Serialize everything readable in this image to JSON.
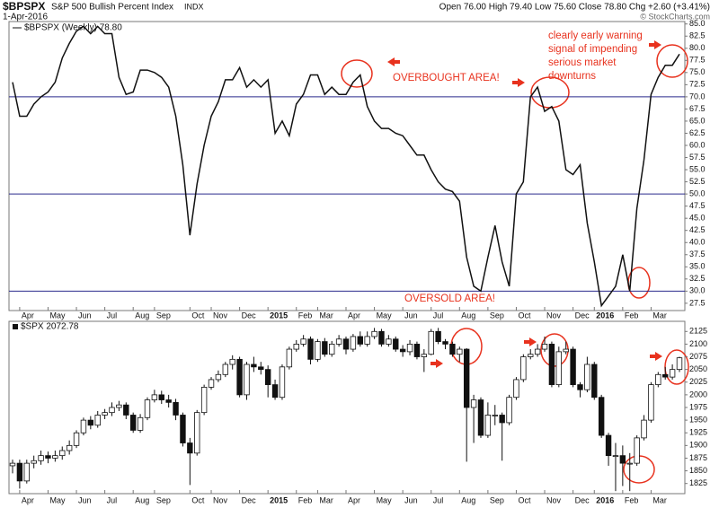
{
  "chart_data": [
    {
      "type": "line",
      "symbol": "$BPSPX",
      "title": "S&P 500 Bullish Percent Index",
      "exchange": "INDX",
      "date": "1-Apr-2016",
      "quote": "Open 76.00 High 79.40 Low 75.60 Close 78.80 Chg +2.60 (+3.41%)",
      "credit": "© StockCharts.com",
      "annotations": [
        "OVERBOUGHT AREA!",
        "OVERSOLD AREA!"
      ],
      "warning_lines": [
        "clearly early warning",
        "signal of impending",
        "serious market",
        "downturns"
      ],
      "categories": [
        null,
        "Apr",
        null,
        null,
        null,
        "May",
        null,
        null,
        null,
        "Jun",
        null,
        null,
        null,
        "Jul",
        null,
        null,
        null,
        "Aug",
        null,
        null,
        "Sep",
        null,
        null,
        null,
        null,
        "Oct",
        null,
        null,
        "Nov",
        null,
        null,
        null,
        "Dec",
        null,
        null,
        null,
        "2015",
        null,
        null,
        null,
        "Feb",
        null,
        null,
        "Mar",
        null,
        null,
        null,
        "Apr",
        null,
        null,
        null,
        "May",
        null,
        null,
        null,
        "Jun",
        null,
        null,
        null,
        "Jul",
        null,
        null,
        null,
        "Aug",
        null,
        null,
        null,
        "Sep",
        null,
        null,
        null,
        "Oct",
        null,
        null,
        null,
        "Nov",
        null,
        null,
        null,
        "Dec",
        null,
        null,
        "2016",
        null,
        null,
        null,
        "Feb",
        null,
        null,
        null,
        "Mar",
        null,
        null,
        null,
        null
      ],
      "series": [
        {
          "name": "$BPSPX (Weekly) 78.80",
          "color": "#111111",
          "values": [
            73,
            66,
            66,
            68.5,
            70,
            71,
            73,
            78,
            81,
            83.5,
            84.5,
            83,
            84.5,
            83,
            83,
            74,
            70.5,
            71,
            75.5,
            75.5,
            75,
            74,
            72,
            66,
            56,
            41.5,
            52,
            60,
            66,
            69,
            73.5,
            73.5,
            76,
            72,
            73.5,
            72,
            73.5,
            62.5,
            65,
            62,
            68.5,
            70.5,
            74.5,
            74.5,
            70.5,
            72,
            70.5,
            70.5,
            73,
            74.5,
            68,
            65,
            63.5,
            63.5,
            62.5,
            62,
            60,
            58,
            58,
            55,
            52.5,
            51,
            50.5,
            48.5,
            37,
            31,
            30,
            37,
            43.5,
            36,
            31,
            50,
            52.5,
            70,
            72,
            67,
            68,
            65,
            55,
            54,
            56,
            44,
            36,
            27,
            29,
            31,
            37.5,
            30,
            47,
            57,
            70.5,
            74,
            76.5,
            76.5,
            78.8
          ]
        }
      ],
      "hlines": [
        70,
        50,
        30
      ],
      "hline_color": "#2a2a8c",
      "ylim": [
        26,
        85.5
      ],
      "yticks": [
        27.5,
        {
          "value": 30,
          "label": "30.0"
        },
        32.5,
        {
          "value": 35,
          "label": "35.0"
        },
        37.5,
        {
          "value": 40,
          "label": "40.0"
        },
        42.5,
        {
          "value": 45,
          "label": "45.0"
        },
        47.5,
        {
          "value": 50,
          "label": "50.0"
        },
        52.5,
        {
          "value": 55,
          "label": "55.0"
        },
        57.5,
        {
          "value": 60,
          "label": "60.0"
        },
        62.5,
        {
          "value": 65,
          "label": "65.0"
        },
        67.5,
        {
          "value": 70,
          "label": "70.0"
        },
        72.5,
        {
          "value": 75,
          "label": "75.0"
        },
        77.5,
        {
          "value": 80,
          "label": "80.0"
        },
        82.5,
        {
          "value": 85,
          "label": "85.0"
        }
      ]
    },
    {
      "type": "candlestick",
      "series_name": "$SPX 2072.78",
      "categories": [
        null,
        "Apr",
        null,
        null,
        null,
        "May",
        null,
        null,
        null,
        "Jun",
        null,
        null,
        null,
        "Jul",
        null,
        null,
        null,
        "Aug",
        null,
        null,
        "Sep",
        null,
        null,
        null,
        null,
        "Oct",
        null,
        null,
        "Nov",
        null,
        null,
        null,
        "Dec",
        null,
        null,
        null,
        "2015",
        null,
        null,
        null,
        "Feb",
        null,
        null,
        "Mar",
        null,
        null,
        null,
        "Apr",
        null,
        null,
        null,
        "May",
        null,
        null,
        null,
        "Jun",
        null,
        null,
        null,
        "Jul",
        null,
        null,
        null,
        "Aug",
        null,
        null,
        null,
        "Sep",
        null,
        null,
        null,
        "Oct",
        null,
        null,
        null,
        "Nov",
        null,
        null,
        null,
        "Dec",
        null,
        null,
        "2016",
        null,
        null,
        null,
        "Feb",
        null,
        null,
        null,
        "Mar",
        null,
        null,
        null,
        null
      ],
      "open": [
        1860,
        1865,
        1830,
        1865,
        1870,
        1880,
        1875,
        1880,
        1890,
        1900,
        1925,
        1950,
        1940,
        1960,
        1965,
        1975,
        1980,
        1960,
        1930,
        1955,
        1990,
        2000,
        1990,
        1985,
        1960,
        1905,
        1885,
        1965,
        2015,
        2030,
        2040,
        2060,
        2070,
        2000,
        2060,
        2055,
        2050,
        2020,
        1995,
        2055,
        2090,
        2100,
        2110,
        2070,
        2105,
        2080,
        2100,
        2110,
        2090,
        2115,
        2100,
        2115,
        2125,
        2100,
        2110,
        2090,
        2085,
        2100,
        2075,
        2080,
        2125,
        2105,
        2100,
        2080,
        2090,
        1975,
        1990,
        1920,
        1960,
        1960,
        1945,
        1995,
        2030,
        2075,
        2080,
        2090,
        2100,
        2020,
        2085,
        2090,
        2020,
        2010,
        2060,
        1995,
        1920,
        1880,
        1880,
        1865,
        1865,
        1915,
        1950,
        2020,
        2040,
        2035,
        2050
      ],
      "high": [
        1872,
        1872,
        1872,
        1880,
        1890,
        1888,
        1890,
        1898,
        1910,
        1930,
        1955,
        1958,
        1968,
        1972,
        1985,
        1988,
        1985,
        1965,
        1962,
        1995,
        2010,
        2008,
        2000,
        1992,
        1965,
        1915,
        1970,
        2020,
        2035,
        2048,
        2065,
        2078,
        2075,
        2065,
        2075,
        2065,
        2058,
        2030,
        2060,
        2095,
        2108,
        2118,
        2115,
        2110,
        2112,
        2106,
        2118,
        2115,
        2120,
        2125,
        2125,
        2132,
        2130,
        2118,
        2115,
        2098,
        2108,
        2105,
        2090,
        2130,
        2132,
        2110,
        2105,
        2095,
        2092,
        2000,
        1995,
        1985,
        1980,
        1965,
        2000,
        2035,
        2080,
        2090,
        2100,
        2115,
        2105,
        2095,
        2105,
        2095,
        2025,
        2075,
        2065,
        2000,
        1925,
        1905,
        1900,
        1885,
        1920,
        1960,
        2025,
        2045,
        2055,
        2060,
        2075
      ],
      "low": [
        1845,
        1815,
        1825,
        1855,
        1862,
        1865,
        1868,
        1872,
        1882,
        1895,
        1920,
        1932,
        1935,
        1952,
        1958,
        1968,
        1952,
        1925,
        1925,
        1950,
        1985,
        1982,
        1975,
        1950,
        1898,
        1822,
        1880,
        1960,
        2010,
        2025,
        2035,
        2050,
        1995,
        1990,
        2045,
        2040,
        1995,
        1990,
        1990,
        2050,
        2085,
        2095,
        2060,
        2065,
        2075,
        2075,
        2095,
        2080,
        2085,
        2095,
        2095,
        2110,
        2095,
        2095,
        2085,
        2075,
        2078,
        2070,
        2045,
        2078,
        2100,
        2090,
        2075,
        2065,
        1868,
        1905,
        1915,
        1915,
        1940,
        1870,
        1940,
        1990,
        2025,
        2070,
        2075,
        2085,
        2015,
        2015,
        2080,
        2015,
        1995,
        2005,
        1990,
        1915,
        1860,
        1810,
        1820,
        1810,
        1860,
        1910,
        1945,
        2015,
        2030,
        2030,
        2045
      ],
      "close": [
        1865,
        1830,
        1865,
        1870,
        1880,
        1875,
        1880,
        1890,
        1900,
        1925,
        1950,
        1940,
        1960,
        1965,
        1975,
        1980,
        1960,
        1930,
        1955,
        1990,
        2000,
        1990,
        1985,
        1960,
        1905,
        1885,
        1965,
        2015,
        2030,
        2040,
        2060,
        2070,
        2000,
        2060,
        2055,
        2050,
        2020,
        1995,
        2055,
        2090,
        2100,
        2110,
        2070,
        2105,
        2080,
        2100,
        2110,
        2090,
        2115,
        2100,
        2115,
        2125,
        2100,
        2110,
        2090,
        2085,
        2100,
        2075,
        2080,
        2125,
        2105,
        2100,
        2080,
        2090,
        1975,
        1990,
        1920,
        1960,
        1960,
        1945,
        1995,
        2030,
        2075,
        2080,
        2090,
        2100,
        2020,
        2085,
        2090,
        2020,
        2010,
        2060,
        1995,
        1920,
        1880,
        1880,
        1865,
        1865,
        1915,
        1950,
        2020,
        2040,
        2035,
        2050,
        2073
      ],
      "ylim": [
        1805,
        2145
      ],
      "yticks": [
        1825,
        1850,
        1875,
        1900,
        1925,
        1950,
        1975,
        2000,
        2025,
        2050,
        2075,
        2100,
        2125
      ]
    }
  ]
}
